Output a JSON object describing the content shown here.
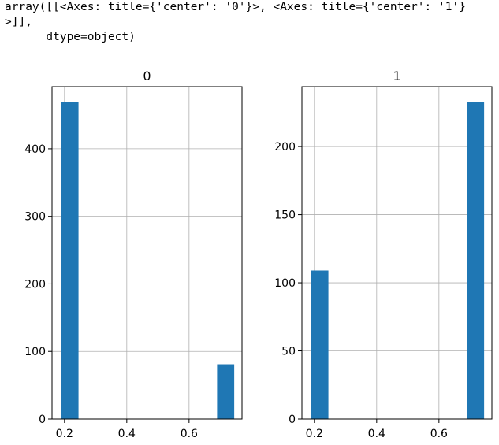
{
  "output": {
    "repr_lines": [
      "array([[<Axes: title={'center': '0'}>, <Axes: title={'center': '1'}",
      ">]],",
      "      dtype=object)"
    ]
  },
  "chart_data": [
    {
      "type": "bar",
      "title": "0",
      "xlabel": "",
      "ylabel": "",
      "bins": [
        {
          "x0": 0.19,
          "x1": 0.245,
          "count": 469
        },
        {
          "x0": 0.69,
          "x1": 0.745,
          "count": 81
        }
      ],
      "xlim": [
        0.16,
        0.77
      ],
      "ylim": [
        0,
        492
      ],
      "xticks": [
        "0.2",
        "0.4",
        "0.6"
      ],
      "xtick_values": [
        0.2,
        0.4,
        0.6
      ],
      "yticks": [
        "0",
        "100",
        "200",
        "300",
        "400"
      ],
      "ytick_values": [
        0,
        100,
        200,
        300,
        400
      ],
      "grid": true,
      "bar_color": "#1f77b4"
    },
    {
      "type": "bar",
      "title": "1",
      "xlabel": "",
      "ylabel": "",
      "bins": [
        {
          "x0": 0.19,
          "x1": 0.245,
          "count": 109
        },
        {
          "x0": 0.69,
          "x1": 0.745,
          "count": 233
        }
      ],
      "xlim": [
        0.16,
        0.77
      ],
      "ylim": [
        0,
        244
      ],
      "xticks": [
        "0.2",
        "0.4",
        "0.6"
      ],
      "xtick_values": [
        0.2,
        0.4,
        0.6
      ],
      "yticks": [
        "0",
        "50",
        "100",
        "150",
        "200"
      ],
      "ytick_values": [
        0,
        50,
        100,
        150,
        200
      ],
      "grid": true,
      "bar_color": "#1f77b4"
    }
  ]
}
